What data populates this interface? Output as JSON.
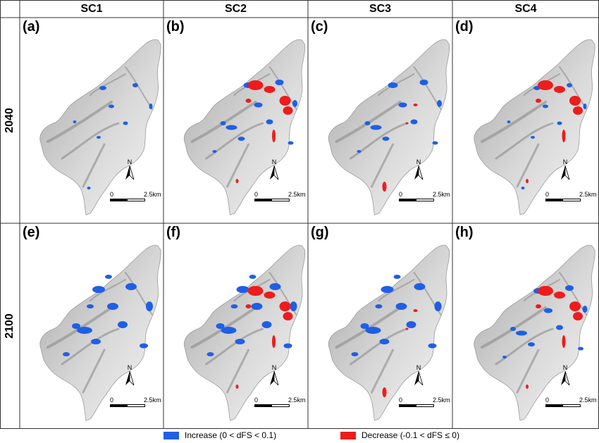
{
  "columns": [
    "SC1",
    "SC2",
    "SC3",
    "SC4"
  ],
  "rows": [
    "2040",
    "2100"
  ],
  "panels": [
    {
      "label": "(a)",
      "scenario": "SC1",
      "year": "2040",
      "increase_level": "low",
      "decrease_level": "none"
    },
    {
      "label": "(b)",
      "scenario": "SC2",
      "year": "2040",
      "increase_level": "medium",
      "decrease_level": "high"
    },
    {
      "label": "(c)",
      "scenario": "SC3",
      "year": "2040",
      "increase_level": "medium",
      "decrease_level": "low"
    },
    {
      "label": "(d)",
      "scenario": "SC4",
      "year": "2040",
      "increase_level": "low",
      "decrease_level": "high"
    },
    {
      "label": "(e)",
      "scenario": "SC1",
      "year": "2100",
      "increase_level": "high",
      "decrease_level": "none"
    },
    {
      "label": "(f)",
      "scenario": "SC2",
      "year": "2100",
      "increase_level": "high",
      "decrease_level": "high"
    },
    {
      "label": "(g)",
      "scenario": "SC3",
      "year": "2100",
      "increase_level": "high",
      "decrease_level": "low"
    },
    {
      "label": "(h)",
      "scenario": "SC4",
      "year": "2100",
      "increase_level": "medium",
      "decrease_level": "high"
    }
  ],
  "north_label": "N",
  "scale": {
    "zero": "0",
    "end": "2.5",
    "unit": "km"
  },
  "legend": {
    "increase": {
      "label": "Increase (0 < dFS < 0.1)",
      "color": "#1f5fe6"
    },
    "decrease": {
      "label": "Decrease (-0.1 < dFS ≤ 0)",
      "color": "#ee1c1c"
    }
  },
  "colors": {
    "terrain_light": "#efefef",
    "terrain_shadow": "#8c8c8c",
    "grid_line": "#333333"
  }
}
